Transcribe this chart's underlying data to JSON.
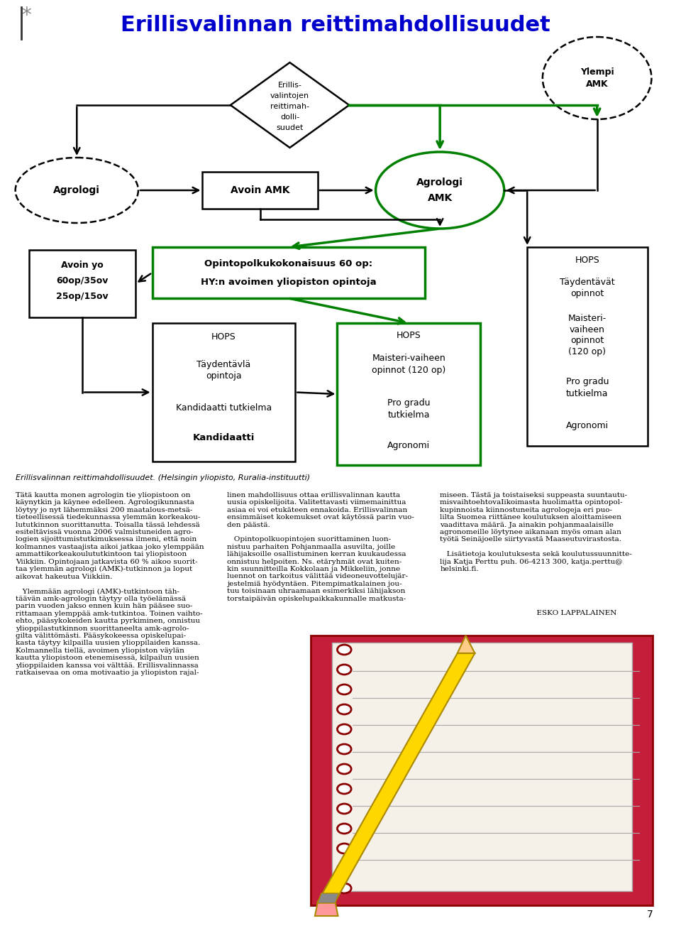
{
  "title": "Erillisvalinnan reittimahdollisuudet",
  "title_color": "#0000CC",
  "title_fontsize": 22,
  "background_color": "#FFFFFF",
  "caption": "Erillisvalinnan reittimahdollisuudet. (Helsingin yliopisto, Ruralia-instituutti)",
  "page_number": "7"
}
